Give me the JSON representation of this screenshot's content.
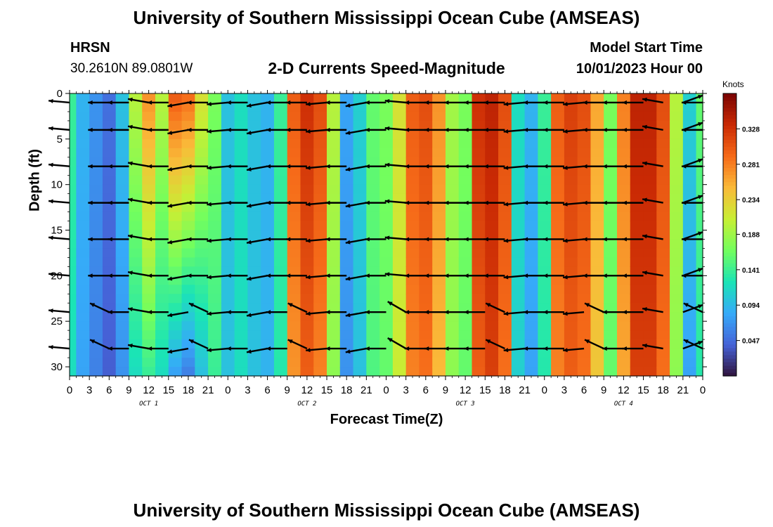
{
  "page": {
    "title_top": "University of Southern Mississippi Ocean Cube (AMSEAS)",
    "title_bottom": "University of Southern Mississippi Ocean Cube (AMSEAS)",
    "station_name": "HRSN",
    "station_coords": "30.2610N  89.0801W",
    "model_start_label": "Model Start Time",
    "model_start_value": "10/01/2023 Hour 00"
  },
  "colors": {
    "colormap": [
      "#30123b",
      "#4662d7",
      "#36aaf9",
      "#1ae4b6",
      "#72fe5e",
      "#c7ef34",
      "#faba39",
      "#f66b19",
      "#ca2a04",
      "#7a0403"
    ],
    "arrow": "#000000"
  },
  "chart_data": {
    "type": "heatmap",
    "title": "2-D Currents Speed-Magnitude",
    "xlabel": "Forecast Time(Z)",
    "ylabel": "Depth (ft)",
    "xlim": [
      0,
      96
    ],
    "ylim": [
      0,
      31
    ],
    "y_inverted": true,
    "x_ticks": [
      0,
      3,
      6,
      9,
      12,
      15,
      18,
      21,
      24,
      27,
      30,
      33,
      36,
      39,
      42,
      45,
      48,
      51,
      54,
      57,
      60,
      63,
      66,
      69,
      72,
      75,
      78,
      81,
      84,
      87,
      90,
      93,
      96
    ],
    "x_tick_labels": [
      "0",
      "3",
      "6",
      "9",
      "12",
      "15",
      "18",
      "21",
      "0",
      "3",
      "6",
      "9",
      "12",
      "15",
      "18",
      "21",
      "0",
      "3",
      "6",
      "9",
      "12",
      "15",
      "18",
      "21",
      "0",
      "3",
      "6",
      "9",
      "12",
      "15",
      "18",
      "21",
      "0"
    ],
    "y_ticks": [
      0,
      5,
      10,
      15,
      20,
      25,
      30
    ],
    "y_tick_labels": [
      "0",
      "5",
      "10",
      "15",
      "20",
      "25",
      "30"
    ],
    "date_labels": [
      {
        "hour": 12,
        "text": "OCT 1"
      },
      {
        "hour": 36,
        "text": "OCT 2"
      },
      {
        "hour": 60,
        "text": "OCT 3"
      },
      {
        "hour": 84,
        "text": "OCT 4"
      }
    ],
    "colorbar": {
      "unit": "Knots",
      "range": [
        0.0,
        0.375
      ],
      "tick_values": [
        0.047,
        0.094,
        0.141,
        0.188,
        0.234,
        0.281,
        0.328
      ],
      "tick_labels": [
        "0.047",
        "0.094",
        "0.141",
        "0.188",
        "0.234",
        "0.281",
        "0.328"
      ]
    },
    "speed_profile_hours": [
      0,
      2,
      4,
      6,
      8,
      10,
      12,
      14,
      16,
      18,
      20,
      22,
      24,
      26,
      28,
      30,
      32,
      34,
      36,
      38,
      40,
      42,
      44,
      46,
      48,
      50,
      52,
      54,
      56,
      58,
      60,
      62,
      64,
      66,
      68,
      70,
      72,
      74,
      76,
      78,
      80,
      82,
      84,
      86,
      88,
      90,
      92,
      94,
      96
    ],
    "speed_profile_surface": [
      0.14,
      0.09,
      0.07,
      0.05,
      0.1,
      0.2,
      0.27,
      0.2,
      0.3,
      0.29,
      0.22,
      0.17,
      0.1,
      0.12,
      0.1,
      0.09,
      0.14,
      0.3,
      0.33,
      0.31,
      0.2,
      0.08,
      0.11,
      0.16,
      0.17,
      0.22,
      0.3,
      0.31,
      0.27,
      0.19,
      0.17,
      0.33,
      0.34,
      0.31,
      0.12,
      0.09,
      0.14,
      0.3,
      0.32,
      0.31,
      0.26,
      0.17,
      0.28,
      0.34,
      0.34,
      0.31,
      0.2,
      0.11,
      0.16
    ],
    "speed_profile_bottom": [
      0.12,
      0.08,
      0.06,
      0.04,
      0.07,
      0.12,
      0.14,
      0.12,
      0.08,
      0.06,
      0.1,
      0.14,
      0.1,
      0.12,
      0.1,
      0.09,
      0.13,
      0.27,
      0.3,
      0.28,
      0.18,
      0.07,
      0.1,
      0.15,
      0.16,
      0.21,
      0.28,
      0.29,
      0.25,
      0.18,
      0.16,
      0.3,
      0.32,
      0.29,
      0.11,
      0.08,
      0.13,
      0.28,
      0.3,
      0.29,
      0.24,
      0.16,
      0.26,
      0.32,
      0.32,
      0.29,
      0.18,
      0.08,
      0.13
    ],
    "vector_depths_ft": [
      1,
      4,
      8,
      12,
      16,
      20,
      24,
      28
    ],
    "vector_hours": [
      0,
      6,
      9,
      12,
      15,
      18,
      21,
      24,
      27,
      30,
      33,
      36,
      39,
      42,
      45,
      48,
      51,
      54,
      57,
      60,
      63,
      66,
      69,
      72,
      75,
      78,
      81,
      84,
      87,
      90,
      93,
      96
    ],
    "vector_direction_deg": [
      175,
      180,
      180,
      170,
      180,
      190,
      180,
      185,
      180,
      190,
      180,
      180,
      185,
      180,
      190,
      180,
      175,
      180,
      180,
      180,
      180,
      180,
      185,
      180,
      180,
      185,
      180,
      180,
      180,
      170,
      20,
      180
    ]
  }
}
